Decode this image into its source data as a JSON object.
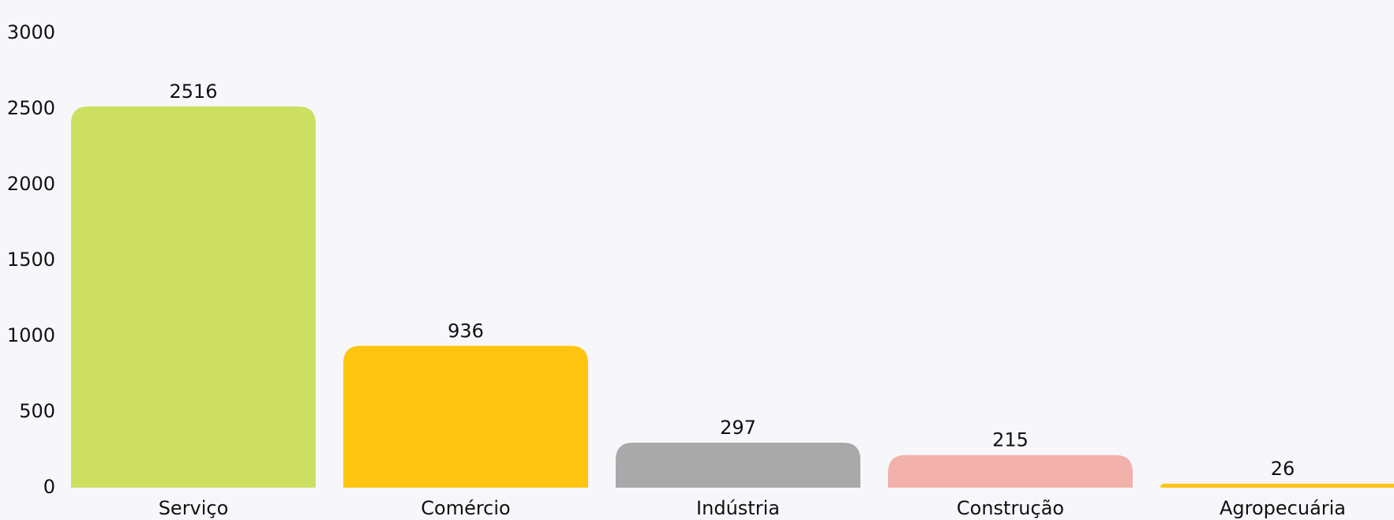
{
  "chart_data": {
    "type": "bar",
    "categories": [
      "Serviço",
      "Comércio",
      "Indústria",
      "Construção",
      "Agropecuária"
    ],
    "values": [
      2516,
      936,
      297,
      215,
      26
    ],
    "colors": [
      "#cddf61",
      "#ffc40f",
      "#a9a9a9",
      "#f2b1ab",
      "#fcc419"
    ],
    "ylim": [
      0,
      3000
    ],
    "yticks": [
      0,
      500,
      1000,
      1500,
      2000,
      2500,
      3000
    ],
    "grid": false
  }
}
